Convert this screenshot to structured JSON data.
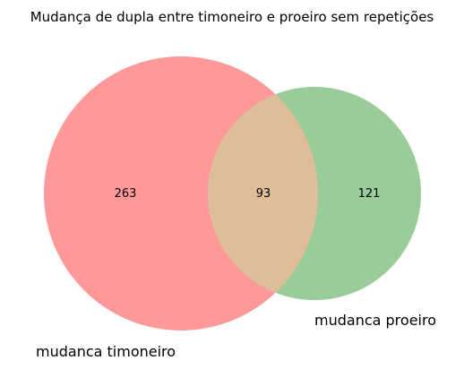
{
  "title": "Mudança de dupla entre timoneiro e proeiro sem repetições",
  "colors": {
    "set_a": "#ff9999",
    "set_b": "#99cc99",
    "overlap": "#dfbd99",
    "background": "#ffffff",
    "text": "#000000"
  },
  "sets": [
    {
      "label": "mudanca timoneiro",
      "only_count": "263"
    },
    {
      "label": "mudanca proeiro",
      "only_count": "121"
    }
  ],
  "intersection_count": "93"
}
